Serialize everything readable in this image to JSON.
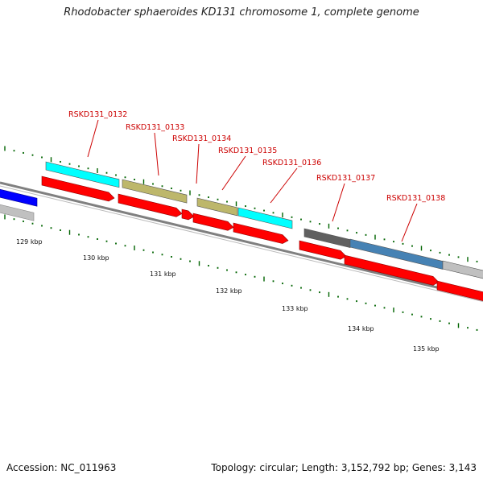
{
  "title": "Rhodobacter sphaeroides KD131 chromosome 1, complete genome",
  "footer": {
    "accession": "Accession: NC_011963",
    "summary": "Topology: circular; Length: 3,152,792 bp; Genes: 3,143"
  },
  "colors": {
    "cds": "#ff0000",
    "cyan_feature": "#00ffff",
    "khaki_feature": "#bdb76b",
    "blue_feature": "#0000ff",
    "grey_feature": "#c0c0c0",
    "dark_grey_feature": "#606060",
    "steelblue_feature": "#4682b4",
    "label": "#cc0000",
    "tick": "#006400",
    "backbone": "#808080"
  },
  "scale": {
    "kbp_labels": [
      "129 kbp",
      "130 kbp",
      "131 kbp",
      "132 kbp",
      "133 kbp",
      "134 kbp",
      "135 kbp"
    ]
  },
  "genes": [
    {
      "label": "RSKD131_0132",
      "feature_color": "cyan"
    },
    {
      "label": "RSKD131_0133",
      "feature_color": "khaki"
    },
    {
      "label": "RSKD131_0134",
      "feature_color": "red"
    },
    {
      "label": "RSKD131_0135",
      "feature_color": "khaki"
    },
    {
      "label": "RSKD131_0136",
      "feature_color": "cyan"
    },
    {
      "label": "RSKD131_0137",
      "feature_color": "dark-grey"
    },
    {
      "label": "RSKD131_0138",
      "feature_color": "steelblue"
    }
  ]
}
